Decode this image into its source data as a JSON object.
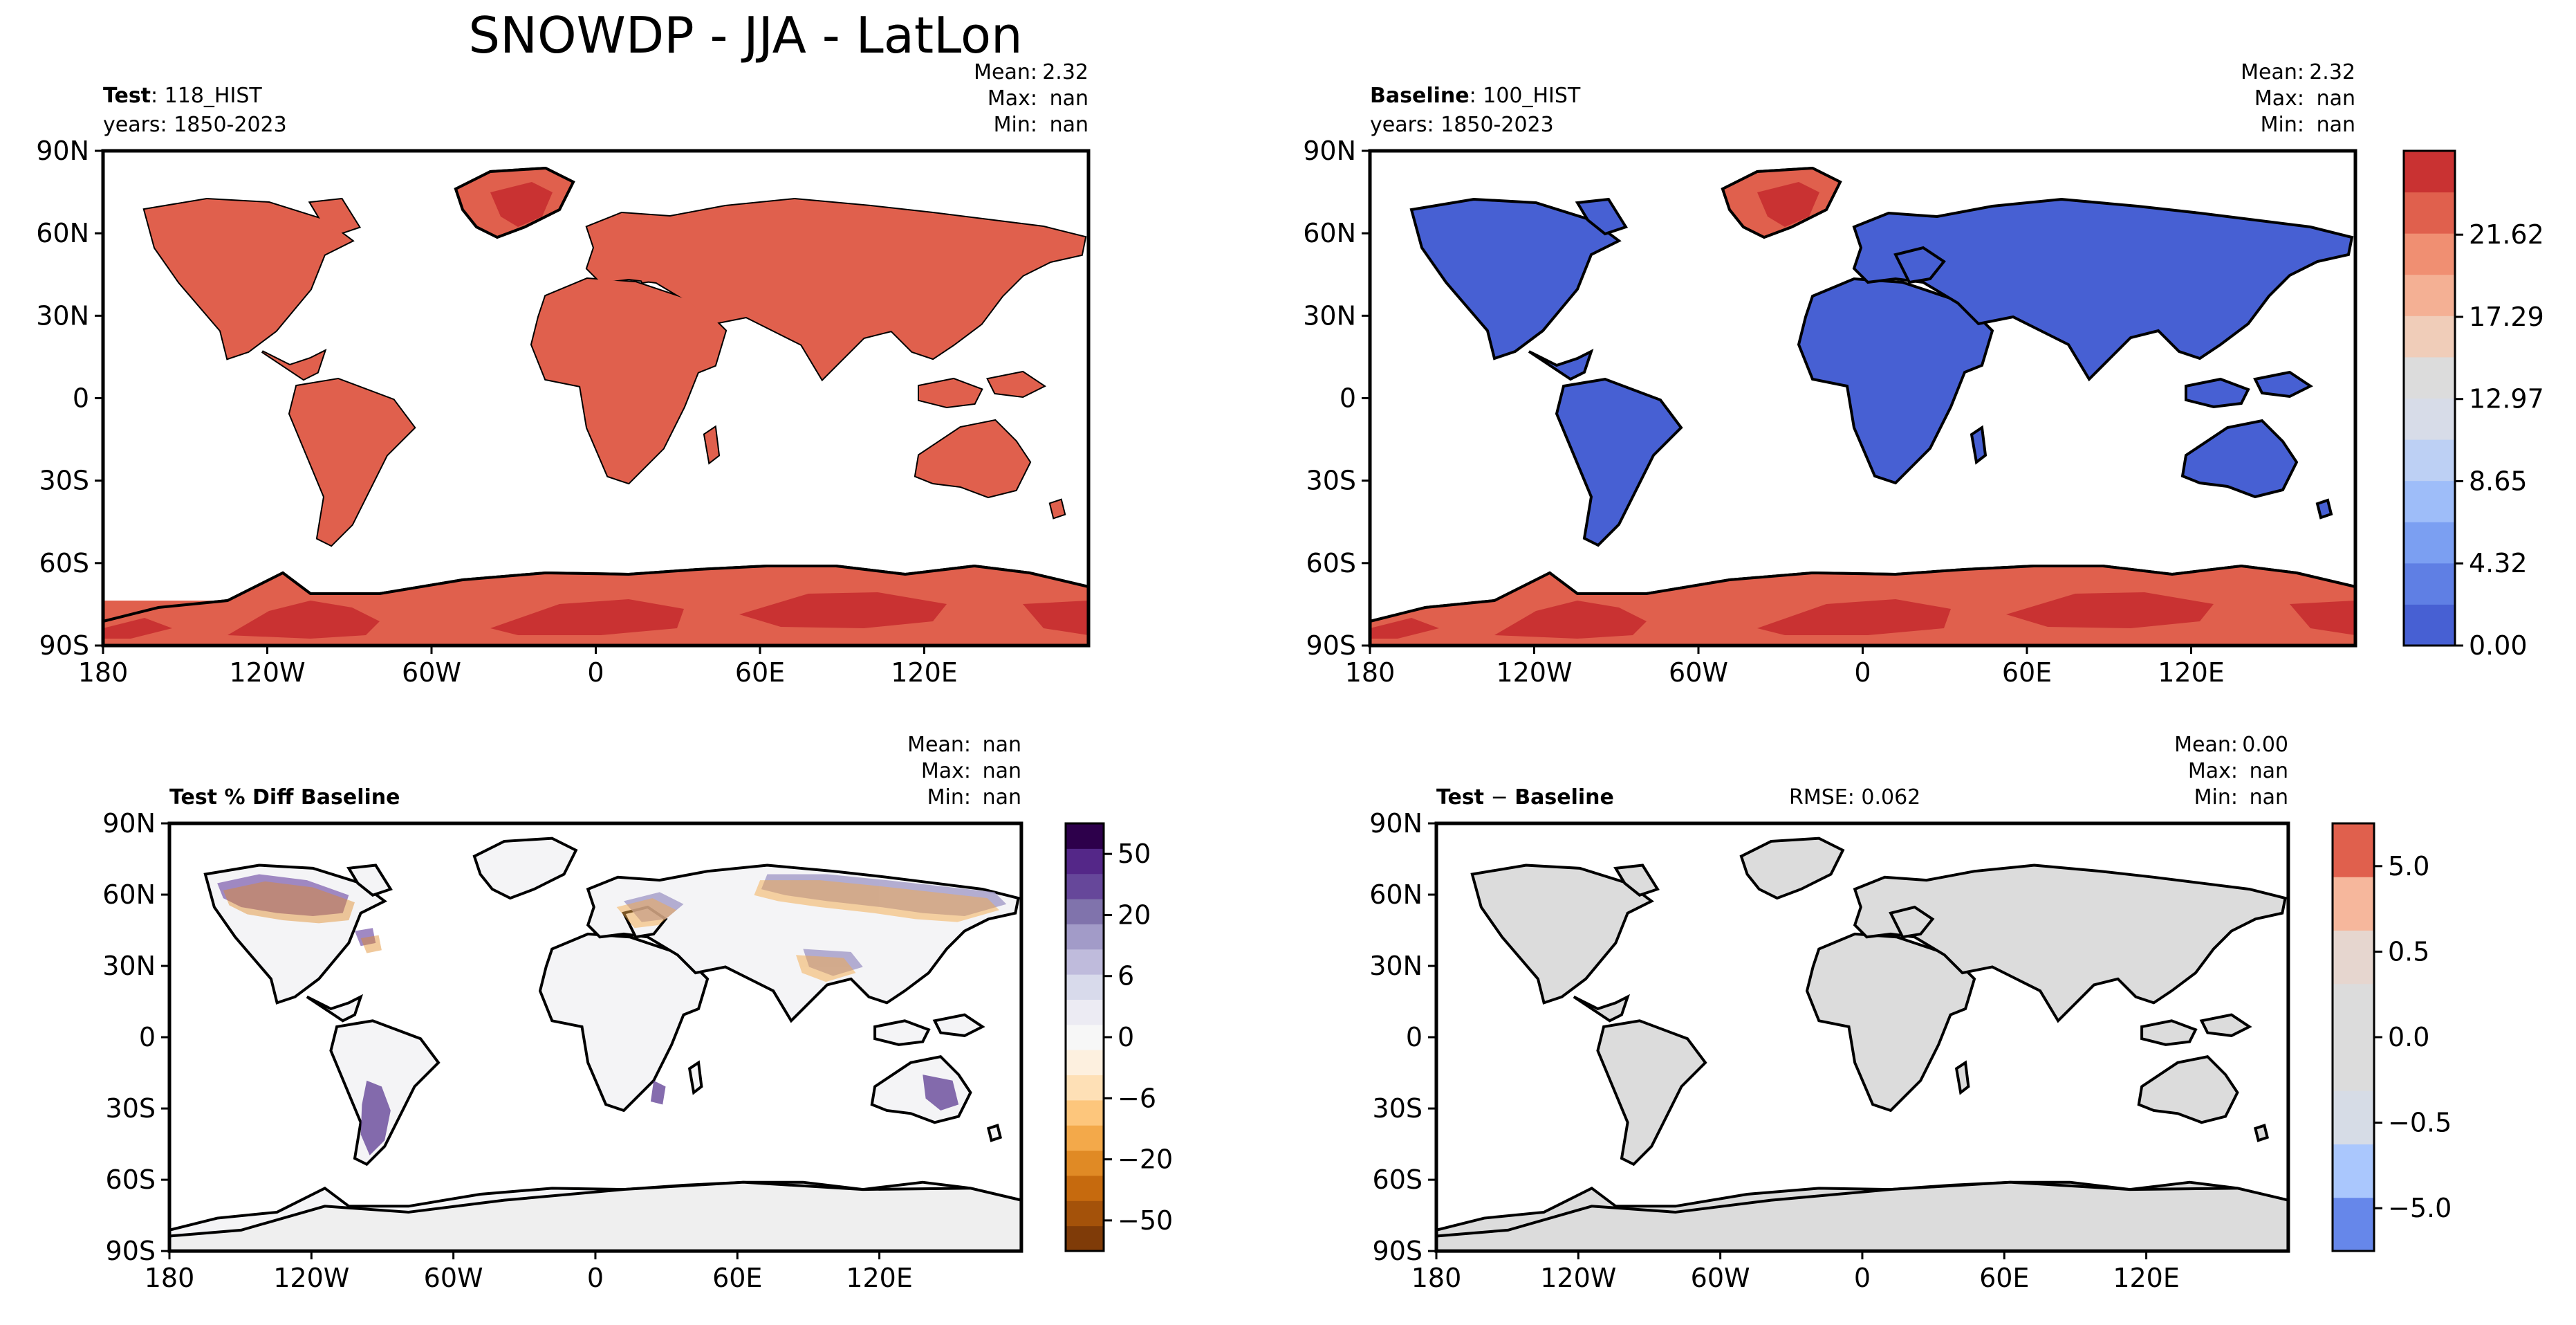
{
  "figure": {
    "title": "SNOWDP - JJA - LatLon"
  },
  "colors": {
    "land_blue": "#4760d3",
    "snow_light_red": "#e0604d",
    "snow_dark_red": "#c93232",
    "diff_grey": "#dcdcdc",
    "pct_grey": "#efefef",
    "ocean": "#ffffff"
  },
  "chart_data": [
    {
      "type": "heatmap",
      "panel": "test",
      "header": {
        "bold": "Test",
        "name": ": 118_HIST",
        "years": "years: 1850-2023"
      },
      "stats": {
        "mean_label": "Mean:",
        "mean": "2.32",
        "max_label": "Max:",
        "max": "nan",
        "min_label": "Min:",
        "min": "nan"
      },
      "x_ticks": [
        "180",
        "120W",
        "60W",
        "0",
        "60E",
        "120E"
      ],
      "y_ticks": [
        "90N",
        "60N",
        "30N",
        "0",
        "30S",
        "60S",
        "90S"
      ],
      "xlim": [
        -180,
        180
      ],
      "ylim": [
        -90,
        90
      ]
    },
    {
      "type": "heatmap",
      "panel": "baseline",
      "header": {
        "bold": "Baseline",
        "name": ": 100_HIST",
        "years": "years: 1850-2023"
      },
      "stats": {
        "mean_label": "Mean:",
        "mean": "2.32",
        "max_label": "Max:",
        "max": "nan",
        "min_label": "Min:",
        "min": "nan"
      },
      "x_ticks": [
        "180",
        "120W",
        "60W",
        "0",
        "60E",
        "120E"
      ],
      "y_ticks": [
        "90N",
        "60N",
        "30N",
        "0",
        "30S",
        "60S",
        "90S"
      ],
      "xlim": [
        -180,
        180
      ],
      "ylim": [
        -90,
        90
      ],
      "colorbar": {
        "ticks": [
          "0.00",
          "4.32",
          "8.65",
          "12.97",
          "17.29",
          "21.62"
        ],
        "colors": [
          "#4760d3",
          "#5f7fe4",
          "#7b9ff2",
          "#9ebdf9",
          "#bdd0f4",
          "#d7dce8",
          "#dcdcdc",
          "#f0cdb9",
          "#f4b094",
          "#f08f72",
          "#e0604d",
          "#c93232"
        ]
      }
    },
    {
      "type": "heatmap",
      "panel": "percent_diff",
      "header": {
        "bold": "Test % Diff Baseline"
      },
      "stats": {
        "mean_label": "Mean:",
        "mean": "nan",
        "max_label": "Max:",
        "max": "nan",
        "min_label": "Min:",
        "min": "nan"
      },
      "x_ticks": [
        "180",
        "120W",
        "60W",
        "0",
        "60E",
        "120E"
      ],
      "y_ticks": [
        "90N",
        "60N",
        "30N",
        "0",
        "30S",
        "60S",
        "90S"
      ],
      "xlim": [
        -180,
        180
      ],
      "ylim": [
        -90,
        90
      ],
      "colorbar": {
        "ticks": [
          "50",
          "20",
          "6",
          "0",
          "−6",
          "−20",
          "−50"
        ],
        "colors": [
          "#7f3b08",
          "#a4520a",
          "#c66a0e",
          "#e08a25",
          "#f3a94a",
          "#fdc67c",
          "#fee0b6",
          "#fdf0df",
          "#f7f7f7",
          "#ecebf3",
          "#d8daeb",
          "#bfbbdc",
          "#a29bc8",
          "#8073ac",
          "#66479a",
          "#542788",
          "#2d004b"
        ]
      }
    },
    {
      "type": "heatmap",
      "panel": "difference",
      "header": {
        "bold": "Test",
        "rest": " − ",
        "bold2": "Baseline",
        "rmse": "RMSE: 0.062"
      },
      "stats": {
        "mean_label": "Mean:",
        "mean": "0.00",
        "max_label": "Max:",
        "max": "nan",
        "min_label": "Min:",
        "min": "nan"
      },
      "x_ticks": [
        "180",
        "120W",
        "60W",
        "0",
        "60E",
        "120E"
      ],
      "y_ticks": [
        "90N",
        "60N",
        "30N",
        "0",
        "30S",
        "60S",
        "90S"
      ],
      "xlim": [
        -180,
        180
      ],
      "ylim": [
        -90,
        90
      ],
      "colorbar": {
        "ticks": [
          "5.0",
          "0.5",
          "0.0",
          "−0.5",
          "−5.0"
        ],
        "colors": [
          "#6687ea",
          "#aac7fd",
          "#d6dce6",
          "#dcdcdc",
          "#dcdcdc",
          "#e6d6cf",
          "#f6b79c",
          "#e0604d"
        ]
      }
    }
  ]
}
